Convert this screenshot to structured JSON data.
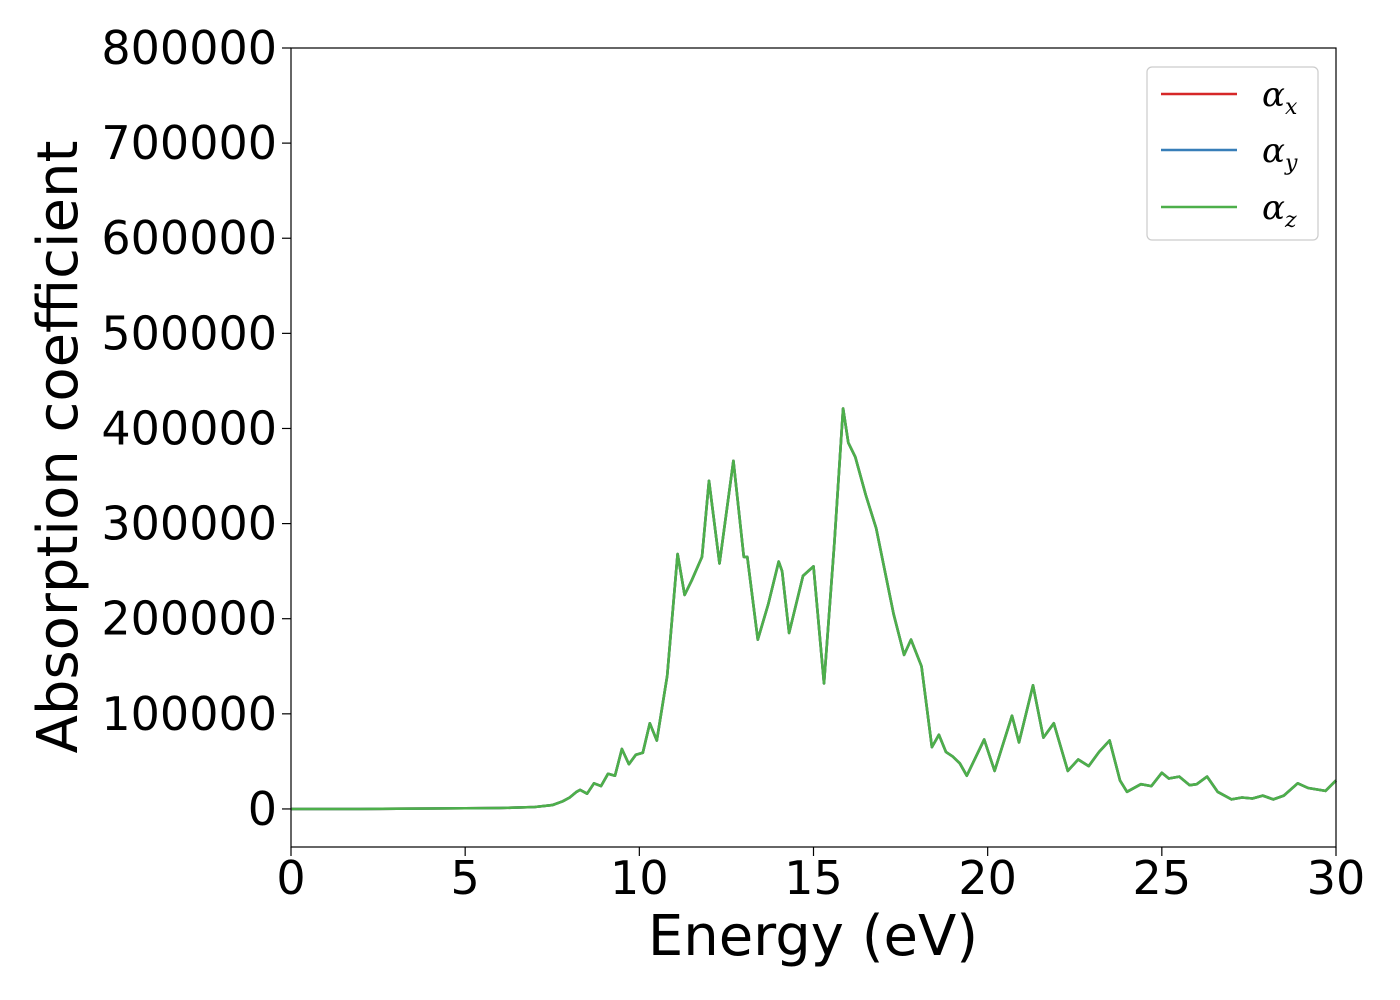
{
  "chart_data": {
    "type": "line",
    "xlabel": "Energy (eV)",
    "ylabel": "Absorption coefficient",
    "xlim": [
      0,
      30
    ],
    "ylim": [
      -40000,
      800000
    ],
    "xticks": [
      "0",
      "5",
      "10",
      "15",
      "20",
      "25",
      "30"
    ],
    "yticks": [
      "0",
      "100000",
      "200000",
      "300000",
      "400000",
      "500000",
      "600000",
      "700000",
      "800000"
    ],
    "grid": false,
    "legend_position": "top-right",
    "colors": {
      "alpha_x": "#d62728",
      "alpha_y": "#377eb8",
      "alpha_z": "#4daf4a"
    },
    "legend": [
      {
        "symbol": "α",
        "sub": "x",
        "color": "#d62728"
      },
      {
        "symbol": "α",
        "sub": "y",
        "color": "#377eb8"
      },
      {
        "symbol": "α",
        "sub": "z",
        "color": "#4daf4a"
      }
    ],
    "x": [
      0,
      2,
      4,
      6,
      7,
      7.5,
      7.8,
      8.0,
      8.2,
      8.3,
      8.5,
      8.7,
      8.9,
      9.1,
      9.3,
      9.5,
      9.7,
      9.9,
      10.1,
      10.3,
      10.5,
      10.8,
      11.1,
      11.3,
      11.5,
      11.8,
      12.0,
      12.3,
      12.7,
      13.0,
      13.1,
      13.4,
      13.7,
      14.0,
      14.1,
      14.3,
      14.7,
      15.0,
      15.3,
      15.6,
      15.85,
      16.0,
      16.2,
      16.5,
      16.8,
      17.3,
      17.6,
      17.8,
      18.1,
      18.4,
      18.6,
      18.8,
      19.0,
      19.2,
      19.4,
      19.9,
      20.2,
      20.7,
      20.9,
      21.3,
      21.6,
      21.9,
      22.3,
      22.6,
      22.9,
      23.2,
      23.5,
      23.8,
      24.0,
      24.4,
      24.7,
      25.0,
      25.2,
      25.5,
      25.8,
      26.0,
      26.3,
      26.6,
      27.0,
      27.3,
      27.6,
      27.9,
      28.2,
      28.5,
      28.9,
      29.2,
      29.7,
      30.0
    ],
    "series": [
      {
        "values": [
          0,
          0,
          500,
          1000,
          2000,
          4000,
          8000,
          12000,
          18000,
          20000,
          16000,
          27000,
          24000,
          37000,
          35000,
          63000,
          47000,
          57000,
          59000,
          90000,
          72000,
          140000,
          268000,
          225000,
          240000,
          265000,
          345000,
          258000,
          366000,
          265000,
          265000,
          178000,
          215000,
          260000,
          250000,
          185000,
          245000,
          255000,
          132000,
          280000,
          421000,
          385000,
          370000,
          330000,
          295000,
          205000,
          162000,
          178000,
          150000,
          65000,
          78000,
          60000,
          55000,
          48000,
          35000,
          73000,
          40000,
          98000,
          70000,
          130000,
          75000,
          90000,
          40000,
          52000,
          45000,
          60000,
          72000,
          30000,
          18000,
          26000,
          24000,
          38000,
          32000,
          34000,
          25000,
          26000,
          34000,
          18000,
          10000,
          12000,
          11000,
          14000,
          10000,
          14000,
          27000,
          22000,
          19000,
          30000
        ]
      },
      {
        "values": [
          0,
          0,
          500,
          1000,
          2000,
          4000,
          8000,
          12000,
          18000,
          20000,
          16000,
          27000,
          24000,
          37000,
          35000,
          63000,
          47000,
          57000,
          59000,
          90000,
          72000,
          140000,
          268000,
          225000,
          240000,
          265000,
          345000,
          258000,
          366000,
          265000,
          265000,
          178000,
          215000,
          260000,
          250000,
          185000,
          245000,
          255000,
          132000,
          280000,
          421000,
          385000,
          370000,
          330000,
          295000,
          205000,
          162000,
          178000,
          150000,
          65000,
          78000,
          60000,
          55000,
          48000,
          35000,
          73000,
          40000,
          98000,
          70000,
          130000,
          75000,
          90000,
          40000,
          52000,
          45000,
          60000,
          72000,
          30000,
          18000,
          26000,
          24000,
          38000,
          32000,
          34000,
          25000,
          26000,
          34000,
          18000,
          10000,
          12000,
          11000,
          14000,
          10000,
          14000,
          27000,
          22000,
          19000,
          30000
        ]
      },
      {
        "values": [
          0,
          0,
          500,
          1000,
          2000,
          4000,
          8000,
          12000,
          18000,
          20000,
          16000,
          27000,
          24000,
          37000,
          35000,
          63000,
          47000,
          57000,
          59000,
          90000,
          72000,
          140000,
          268000,
          225000,
          240000,
          265000,
          345000,
          258000,
          366000,
          265000,
          265000,
          178000,
          215000,
          260000,
          250000,
          185000,
          245000,
          255000,
          132000,
          280000,
          421000,
          385000,
          370000,
          330000,
          295000,
          205000,
          162000,
          178000,
          150000,
          65000,
          78000,
          60000,
          55000,
          48000,
          35000,
          73000,
          40000,
          98000,
          70000,
          130000,
          75000,
          90000,
          40000,
          52000,
          45000,
          60000,
          72000,
          30000,
          18000,
          26000,
          24000,
          38000,
          32000,
          34000,
          25000,
          26000,
          34000,
          18000,
          10000,
          12000,
          11000,
          14000,
          10000,
          14000,
          27000,
          22000,
          19000,
          30000
        ]
      }
    ]
  }
}
